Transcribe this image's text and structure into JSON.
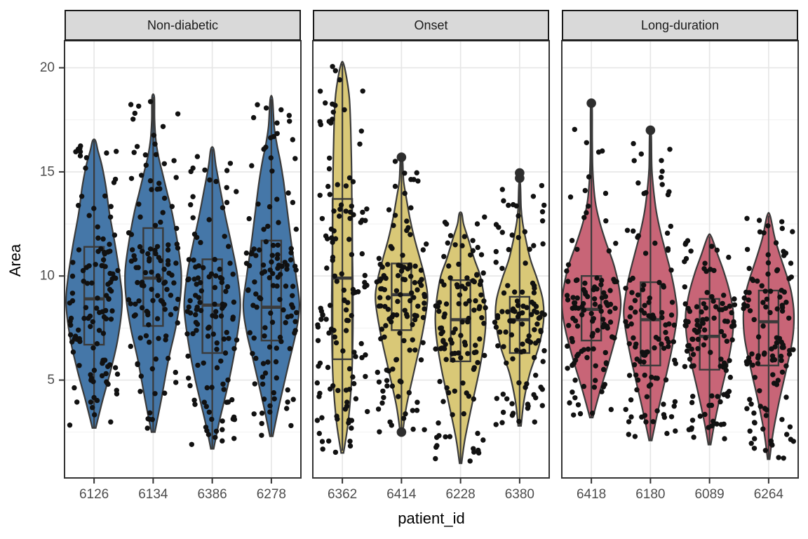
{
  "chart_data": {
    "type": "violin",
    "title": "",
    "xlabel": "patient_id",
    "ylabel": "Area",
    "ylim": [
      0.3,
      21.3
    ],
    "y_major_ticks": [
      5,
      10,
      15,
      20
    ],
    "y_minor_gridlines": [
      2.5,
      7.5,
      12.5,
      17.5
    ],
    "legend": "none",
    "grid": "on",
    "style": {
      "strip_bg": "#d9d9d9",
      "strip_border": "#1a1a1a",
      "panel_border": "#333333",
      "major_grid": "#e6e6e6",
      "minor_grid": "#f1f1f1",
      "violin_stroke": "#3a3a3a",
      "box_stroke": "#3a3a3a",
      "point_color": "#111111",
      "outlier_color": "#2e2e2e",
      "tick_label_color": "#4d4d4d",
      "axis_title_color": "#000000"
    },
    "facets": [
      {
        "label": "Non-diabetic",
        "fill": "#4577A8",
        "patients": [
          {
            "id": "6126",
            "median": 8.9,
            "q1": 6.7,
            "q3": 11.4,
            "whisker_low": 2.7,
            "whisker_high": 16.5,
            "violin_min": 2.7,
            "violin_max": 16.5,
            "outliers": [],
            "n_points": 120,
            "max_halfwidth": 40,
            "profile": [
              [
                2.7,
                0.06
              ],
              [
                4,
                0.3
              ],
              [
                5.5,
                0.6
              ],
              [
                7,
                0.85
              ],
              [
                8.7,
                1
              ],
              [
                10,
                0.92
              ],
              [
                11.5,
                0.75
              ],
              [
                13,
                0.55
              ],
              [
                14.3,
                0.42
              ],
              [
                15.3,
                0.28
              ],
              [
                16,
                0.14
              ],
              [
                16.5,
                0.05
              ]
            ]
          },
          {
            "id": "6134",
            "median": 9.9,
            "q1": 7.6,
            "q3": 12.3,
            "whisker_low": 2.5,
            "whisker_high": 18.6,
            "violin_min": 2.5,
            "violin_max": 18.6,
            "outliers": [],
            "n_points": 120,
            "max_halfwidth": 40,
            "profile": [
              [
                2.5,
                0.06
              ],
              [
                4,
                0.28
              ],
              [
                6,
                0.55
              ],
              [
                7.5,
                0.8
              ],
              [
                9,
                0.97
              ],
              [
                10.2,
                1
              ],
              [
                11.5,
                0.88
              ],
              [
                13,
                0.68
              ],
              [
                14,
                0.5
              ],
              [
                15,
                0.32
              ],
              [
                15.8,
                0.18
              ],
              [
                16.6,
                0.09
              ],
              [
                17.5,
                0.05
              ],
              [
                18.6,
                0.04
              ]
            ]
          },
          {
            "id": "6386",
            "median": 8.6,
            "q1": 6.3,
            "q3": 10.8,
            "whisker_low": 1.7,
            "whisker_high": 16.1,
            "violin_min": 1.7,
            "violin_max": 16.1,
            "outliers": [],
            "n_points": 120,
            "max_halfwidth": 40,
            "profile": [
              [
                1.7,
                0.05
              ],
              [
                3,
                0.25
              ],
              [
                5,
                0.6
              ],
              [
                6.8,
                0.85
              ],
              [
                8.5,
                1
              ],
              [
                10,
                0.9
              ],
              [
                11.3,
                0.72
              ],
              [
                12.8,
                0.48
              ],
              [
                14.2,
                0.28
              ],
              [
                15.3,
                0.13
              ],
              [
                16.1,
                0.05
              ]
            ]
          },
          {
            "id": "6278",
            "median": 8.5,
            "q1": 6.9,
            "q3": 11.7,
            "whisker_low": 2.3,
            "whisker_high": 18.5,
            "violin_min": 2.3,
            "violin_max": 18.5,
            "outliers": [],
            "n_points": 120,
            "max_halfwidth": 40,
            "profile": [
              [
                2.3,
                0.05
              ],
              [
                3.8,
                0.28
              ],
              [
                5.8,
                0.62
              ],
              [
                7.3,
                0.88
              ],
              [
                8.6,
                1
              ],
              [
                10,
                0.88
              ],
              [
                11.5,
                0.72
              ],
              [
                13,
                0.58
              ],
              [
                14.5,
                0.44
              ],
              [
                15.5,
                0.32
              ],
              [
                16.3,
                0.2
              ],
              [
                17.2,
                0.1
              ],
              [
                18.5,
                0.04
              ]
            ]
          }
        ]
      },
      {
        "label": "Onset",
        "fill": "#D9C877",
        "patients": [
          {
            "id": "6362",
            "median": 9.9,
            "q1": 6.0,
            "q3": 13.7,
            "whisker_low": 1.6,
            "whisker_high": 20.2,
            "violin_min": 1.5,
            "violin_max": 20.2,
            "outliers": [],
            "n_points": 130,
            "max_halfwidth": 24,
            "profile": [
              [
                1.5,
                0.07
              ],
              [
                3,
                0.35
              ],
              [
                5,
                0.55
              ],
              [
                7,
                0.62
              ],
              [
                9,
                0.63
              ],
              [
                11,
                0.6
              ],
              [
                13,
                0.57
              ],
              [
                15,
                0.55
              ],
              [
                17,
                0.5
              ],
              [
                18.5,
                0.42
              ],
              [
                19.4,
                0.28
              ],
              [
                20.2,
                0.07
              ]
            ]
          },
          {
            "id": "6414",
            "median": 9.1,
            "q1": 7.4,
            "q3": 10.6,
            "whisker_low": 2.6,
            "whisker_high": 15.5,
            "violin_min": 2.5,
            "violin_max": 15.6,
            "outliers": [
              15.7,
              2.5
            ],
            "n_points": 120,
            "max_halfwidth": 37,
            "profile": [
              [
                2.5,
                0.05
              ],
              [
                3.8,
                0.2
              ],
              [
                5.5,
                0.5
              ],
              [
                7.2,
                0.8
              ],
              [
                8.8,
                1
              ],
              [
                9.8,
                0.92
              ],
              [
                10.8,
                0.72
              ],
              [
                11.8,
                0.5
              ],
              [
                12.8,
                0.32
              ],
              [
                13.8,
                0.18
              ],
              [
                14.6,
                0.08
              ],
              [
                15.6,
                0.04
              ]
            ]
          },
          {
            "id": "6228",
            "median": 7.9,
            "q1": 5.9,
            "q3": 9.8,
            "whisker_low": 1.0,
            "whisker_high": 13.0,
            "violin_min": 1.0,
            "violin_max": 13.0,
            "outliers": [],
            "n_points": 115,
            "max_halfwidth": 36,
            "profile": [
              [
                1,
                0.04
              ],
              [
                2.2,
                0.18
              ],
              [
                3.8,
                0.45
              ],
              [
                5.5,
                0.75
              ],
              [
                7,
                0.95
              ],
              [
                8,
                1
              ],
              [
                9,
                0.93
              ],
              [
                10,
                0.78
              ],
              [
                10.8,
                0.55
              ],
              [
                11.8,
                0.3
              ],
              [
                12.5,
                0.12
              ],
              [
                13,
                0.05
              ]
            ]
          },
          {
            "id": "6380",
            "median": 7.9,
            "q1": 6.3,
            "q3": 9.0,
            "whisker_low": 2.8,
            "whisker_high": 14.4,
            "violin_min": 2.8,
            "violin_max": 14.4,
            "outliers": [
              14.7,
              14.95
            ],
            "n_points": 110,
            "max_halfwidth": 34,
            "profile": [
              [
                2.8,
                0.06
              ],
              [
                4,
                0.18
              ],
              [
                5.3,
                0.42
              ],
              [
                6.6,
                0.8
              ],
              [
                7.8,
                1
              ],
              [
                8.8,
                0.98
              ],
              [
                9.8,
                0.75
              ],
              [
                10.8,
                0.45
              ],
              [
                11.8,
                0.25
              ],
              [
                12.6,
                0.12
              ],
              [
                13.3,
                0.06
              ],
              [
                14.4,
                0.03
              ]
            ]
          }
        ]
      },
      {
        "label": "Long-duration",
        "fill": "#C86577",
        "patients": [
          {
            "id": "6418",
            "median": 8.4,
            "q1": 6.9,
            "q3": 10.0,
            "whisker_low": 3.2,
            "whisker_high": 18.3,
            "violin_min": 3.2,
            "violin_max": 18.1,
            "outliers": [
              18.3
            ],
            "n_points": 115,
            "max_halfwidth": 42,
            "profile": [
              [
                3.2,
                0.05
              ],
              [
                4.5,
                0.3
              ],
              [
                6,
                0.62
              ],
              [
                7.4,
                0.88
              ],
              [
                8.6,
                1
              ],
              [
                9.6,
                0.92
              ],
              [
                10.6,
                0.75
              ],
              [
                11.6,
                0.5
              ],
              [
                12.6,
                0.28
              ],
              [
                13.6,
                0.13
              ],
              [
                15,
                0.05
              ],
              [
                16.5,
                0.03
              ],
              [
                18.1,
                0.025
              ]
            ]
          },
          {
            "id": "6180",
            "median": 7.9,
            "q1": 5.7,
            "q3": 9.7,
            "whisker_low": 2.1,
            "whisker_high": 17.0,
            "violin_min": 2.1,
            "violin_max": 16.8,
            "outliers": [
              17.0
            ],
            "n_points": 115,
            "max_halfwidth": 38,
            "profile": [
              [
                2.1,
                0.05
              ],
              [
                3.5,
                0.28
              ],
              [
                5,
                0.55
              ],
              [
                6.6,
                0.82
              ],
              [
                8.1,
                1
              ],
              [
                9.1,
                0.93
              ],
              [
                10.1,
                0.78
              ],
              [
                11.1,
                0.58
              ],
              [
                12.1,
                0.38
              ],
              [
                13.1,
                0.22
              ],
              [
                14.1,
                0.12
              ],
              [
                15.2,
                0.05
              ],
              [
                16.8,
                0.03
              ]
            ]
          },
          {
            "id": "6089",
            "median": 7.1,
            "q1": 5.5,
            "q3": 8.9,
            "whisker_low": 1.9,
            "whisker_high": 11.9,
            "violin_min": 1.9,
            "violin_max": 11.9,
            "outliers": [],
            "n_points": 110,
            "max_halfwidth": 34,
            "profile": [
              [
                1.9,
                0.05
              ],
              [
                3,
                0.22
              ],
              [
                4.5,
                0.5
              ],
              [
                6,
                0.8
              ],
              [
                7.2,
                0.97
              ],
              [
                8.2,
                1
              ],
              [
                9.2,
                0.85
              ],
              [
                10.2,
                0.6
              ],
              [
                11,
                0.35
              ],
              [
                11.9,
                0.07
              ]
            ]
          },
          {
            "id": "6264",
            "median": 7.8,
            "q1": 5.7,
            "q3": 9.3,
            "whisker_low": 1.2,
            "whisker_high": 12.9,
            "violin_min": 1.2,
            "violin_max": 12.9,
            "outliers": [],
            "n_points": 115,
            "max_halfwidth": 36,
            "profile": [
              [
                1.2,
                0.04
              ],
              [
                2.5,
                0.18
              ],
              [
                4,
                0.42
              ],
              [
                5.5,
                0.7
              ],
              [
                7,
                0.95
              ],
              [
                8.2,
                1
              ],
              [
                9.2,
                0.9
              ],
              [
                10,
                0.72
              ],
              [
                10.8,
                0.5
              ],
              [
                11.8,
                0.25
              ],
              [
                12.9,
                0.06
              ]
            ]
          }
        ]
      }
    ]
  }
}
